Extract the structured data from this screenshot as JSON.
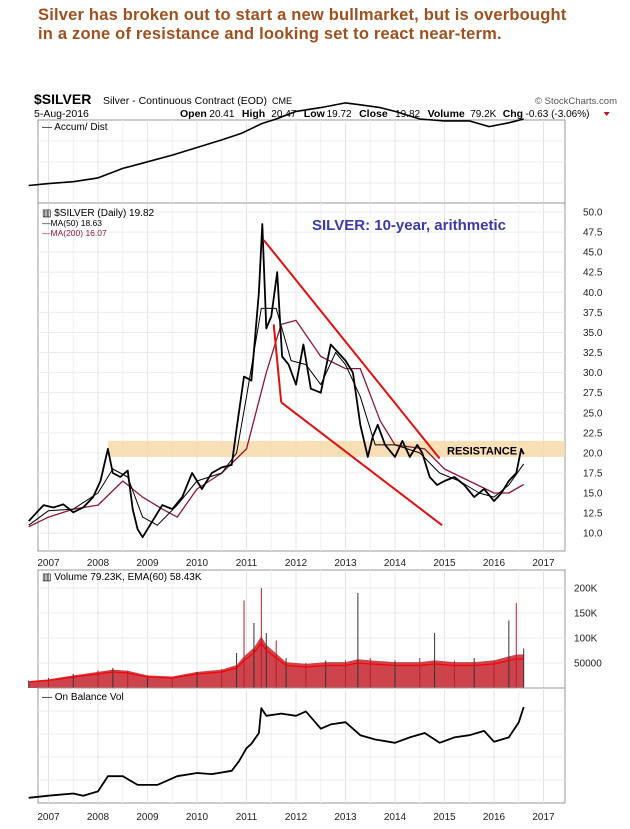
{
  "headline": [
    "Silver has broken out to start a new bullmarket, but is overbought",
    "in a zone of resistance and looking set to react near-term."
  ],
  "header": {
    "symbol": "$SILVER",
    "description": "Silver - Continuous Contract (EOD)",
    "exchange": "CME",
    "watermark": "© StockCharts.com",
    "date": "5-Aug-2016",
    "quote": {
      "open_label": "Open",
      "open": "20.41",
      "high_label": "High",
      "high": "20.47",
      "low_label": "Low",
      "low": "19.72",
      "close_label": "Close",
      "close": "19.82",
      "volume_label": "Volume",
      "volume": "79.2K",
      "chg_label": "Chg",
      "chg": "-0.63 (-3.06%)"
    }
  },
  "colors": {
    "headline": "#a0501e",
    "price": "#000000",
    "ma50": "#000000",
    "ma200": "#8b1a3a",
    "trendline": "#e01010",
    "resistance": "#f7d9a8",
    "volume": "#c8303a",
    "ema": "#ff0000",
    "annotation": "#3a3aaa",
    "down_arrow": "#c0102a"
  },
  "chart_data": [
    {
      "type": "line",
      "panel": "accum-dist",
      "legend": "Accum/ Dist",
      "x": [
        2006.6,
        2007.0,
        2007.5,
        2008.0,
        2008.5,
        2009.0,
        2009.5,
        2010.0,
        2010.5,
        2010.9,
        2011.3,
        2011.6,
        2012.0,
        2012.5,
        2013.0,
        2013.3,
        2013.7,
        2014.0,
        2014.5,
        2015.0,
        2015.5,
        2015.9,
        2016.3,
        2016.6
      ],
      "values": [
        10,
        12,
        14,
        18,
        28,
        35,
        42,
        50,
        58,
        65,
        75,
        80,
        88,
        92,
        97,
        95,
        92,
        88,
        80,
        78,
        78,
        72,
        76,
        80
      ]
    },
    {
      "type": "line",
      "panel": "price",
      "legend": [
        "$SILVER (Daily) 19.82",
        "MA(50) 18.63",
        "MA(200) 16.07"
      ],
      "annotation": "SILVER: 10-year, arithmetic",
      "resistance_label": "RESISTANCE",
      "resistance_zone": [
        19.5,
        21.5
      ],
      "ylim": [
        7.5,
        51
      ],
      "yticks": [
        "50.0",
        "47.5",
        "45.0",
        "42.5",
        "40.0",
        "37.5",
        "35.0",
        "32.5",
        "30.0",
        "27.5",
        "25.0",
        "22.5",
        "20.0",
        "17.5",
        "15.0",
        "12.5",
        "10.0"
      ],
      "xticks": [
        "2007",
        "2008",
        "2009",
        "2010",
        "2011",
        "2012",
        "2013",
        "2014",
        "2015",
        "2016",
        "2017"
      ],
      "series": [
        {
          "name": "$SILVER",
          "x": [
            2006.6,
            2006.75,
            2006.9,
            2007.1,
            2007.3,
            2007.5,
            2007.7,
            2007.9,
            2008.05,
            2008.2,
            2008.3,
            2008.45,
            2008.6,
            2008.7,
            2008.8,
            2008.9,
            2009.1,
            2009.3,
            2009.5,
            2009.7,
            2009.9,
            2010.1,
            2010.3,
            2010.5,
            2010.7,
            2010.8,
            2010.95,
            2011.1,
            2011.25,
            2011.32,
            2011.4,
            2011.5,
            2011.62,
            2011.72,
            2011.85,
            2012.0,
            2012.15,
            2012.3,
            2012.5,
            2012.7,
            2012.85,
            2013.0,
            2013.15,
            2013.3,
            2013.45,
            2013.55,
            2013.65,
            2013.8,
            2014.0,
            2014.15,
            2014.3,
            2014.45,
            2014.55,
            2014.7,
            2014.85,
            2015.0,
            2015.2,
            2015.4,
            2015.6,
            2015.8,
            2016.0,
            2016.15,
            2016.3,
            2016.45,
            2016.55,
            2016.6
          ],
          "values": [
            11.5,
            12.5,
            13.5,
            13.2,
            13.6,
            12.6,
            13.2,
            14.5,
            16.5,
            20.5,
            17.5,
            17.0,
            17.8,
            13.0,
            10.5,
            9.5,
            11.5,
            13.5,
            13.0,
            14.5,
            17.5,
            15.5,
            17.5,
            18.2,
            18.5,
            23.0,
            29.5,
            29.0,
            40.0,
            48.5,
            35.5,
            37.0,
            42.5,
            32.0,
            31.0,
            28.5,
            33.5,
            28.0,
            27.5,
            33.5,
            32.5,
            31.5,
            30.0,
            23.5,
            19.5,
            22.0,
            23.5,
            21.0,
            19.5,
            21.5,
            19.5,
            21.0,
            20.0,
            17.0,
            16.0,
            16.5,
            17.0,
            16.0,
            14.5,
            15.5,
            14.0,
            15.0,
            16.5,
            17.5,
            20.5,
            19.82
          ]
        },
        {
          "name": "MA(50)",
          "x": [
            2006.6,
            2007.0,
            2007.5,
            2008.0,
            2008.3,
            2008.6,
            2008.9,
            2009.2,
            2009.6,
            2010.0,
            2010.5,
            2010.8,
            2011.0,
            2011.3,
            2011.6,
            2011.9,
            2012.2,
            2012.5,
            2012.8,
            2013.0,
            2013.3,
            2013.6,
            2014.0,
            2014.5,
            2014.9,
            2015.3,
            2015.7,
            2016.0,
            2016.3,
            2016.6
          ],
          "values": [
            11.0,
            12.8,
            13.0,
            15.0,
            18.0,
            17.0,
            12.0,
            11.0,
            13.5,
            16.5,
            17.5,
            20.0,
            27.0,
            38.0,
            38.0,
            31.5,
            31.0,
            28.5,
            32.5,
            31.0,
            27.0,
            21.0,
            21.0,
            20.0,
            17.5,
            16.5,
            15.0,
            14.5,
            16.0,
            18.63
          ]
        },
        {
          "name": "MA(200)",
          "x": [
            2006.6,
            2007.0,
            2007.5,
            2008.0,
            2008.5,
            2008.9,
            2009.3,
            2009.6,
            2010.0,
            2010.5,
            2011.0,
            2011.4,
            2011.7,
            2012.0,
            2012.5,
            2013.0,
            2013.3,
            2013.7,
            2014.0,
            2014.6,
            2015.0,
            2015.5,
            2016.0,
            2016.3,
            2016.6
          ],
          "values": [
            10.8,
            12.0,
            13.0,
            13.5,
            16.5,
            14.5,
            13.0,
            12.0,
            15.5,
            17.5,
            20.5,
            30.0,
            36.0,
            36.5,
            32.0,
            30.5,
            30.5,
            24.0,
            21.0,
            20.5,
            18.0,
            16.5,
            15.0,
            15.0,
            16.07
          ]
        }
      ],
      "trendlines": [
        {
          "x": [
            2011.35,
            2014.9
          ],
          "values": [
            46.5,
            19.3
          ]
        },
        {
          "x": [
            2011.7,
            2014.95
          ],
          "values": [
            26.3,
            11.0
          ]
        },
        {
          "x": [
            2011.7,
            2011.55
          ],
          "values": [
            26.3,
            36.0
          ]
        }
      ]
    },
    {
      "type": "bar",
      "panel": "volume",
      "legend": "Volume 79.23K, EMA(60) 58.43K",
      "ylim": [
        0,
        230000
      ],
      "yticks": [
        "200K",
        "150K",
        "100K",
        "50000"
      ],
      "ytick_values": [
        200000,
        150000,
        100000,
        50000
      ],
      "x": [
        2006.6,
        2007.0,
        2007.5,
        2008.0,
        2008.3,
        2008.6,
        2009.0,
        2009.5,
        2010.0,
        2010.5,
        2010.8,
        2010.95,
        2011.15,
        2011.3,
        2011.4,
        2011.6,
        2011.8,
        2012.2,
        2012.6,
        2013.0,
        2013.25,
        2013.5,
        2014.0,
        2014.5,
        2014.8,
        2015.2,
        2015.6,
        2016.0,
        2016.3,
        2016.45,
        2016.6
      ],
      "values": [
        15000,
        20000,
        28000,
        35000,
        40000,
        35000,
        25000,
        22000,
        32000,
        38000,
        70000,
        175000,
        130000,
        200000,
        110000,
        95000,
        60000,
        50000,
        55000,
        55000,
        190000,
        60000,
        55000,
        60000,
        110000,
        55000,
        60000,
        55000,
        135000,
        170000,
        79230
      ],
      "ema": [
        12000,
        15000,
        22000,
        28000,
        32000,
        30000,
        22000,
        20000,
        28000,
        32000,
        40000,
        55000,
        70000,
        90000,
        75000,
        60000,
        45000,
        42000,
        45000,
        45000,
        50000,
        48000,
        45000,
        45000,
        48000,
        45000,
        45000,
        48000,
        55000,
        58000,
        58430
      ]
    },
    {
      "type": "line",
      "panel": "on-balance-volume",
      "legend": "On Balance Vol",
      "xticks": [
        "2007",
        "2008",
        "2009",
        "2010",
        "2011",
        "2012",
        "2013",
        "2014",
        "2015",
        "2016",
        "2017"
      ],
      "x": [
        2006.6,
        2007.0,
        2007.5,
        2007.7,
        2008.0,
        2008.2,
        2008.5,
        2008.8,
        2009.2,
        2009.6,
        2010.0,
        2010.3,
        2010.7,
        2010.85,
        2011.0,
        2011.1,
        2011.25,
        2011.3,
        2011.4,
        2011.7,
        2012.0,
        2012.2,
        2012.5,
        2012.7,
        2013.0,
        2013.3,
        2013.6,
        2014.0,
        2014.3,
        2014.6,
        2014.9,
        2015.2,
        2015.5,
        2015.8,
        2016.0,
        2016.3,
        2016.5,
        2016.6
      ],
      "values": [
        2,
        4,
        6,
        4,
        8,
        22,
        22,
        14,
        14,
        22,
        25,
        24,
        27,
        36,
        48,
        52,
        62,
        85,
        78,
        80,
        78,
        82,
        66,
        70,
        72,
        60,
        56,
        53,
        58,
        62,
        53,
        58,
        60,
        64,
        54,
        58,
        72,
        86
      ]
    }
  ]
}
